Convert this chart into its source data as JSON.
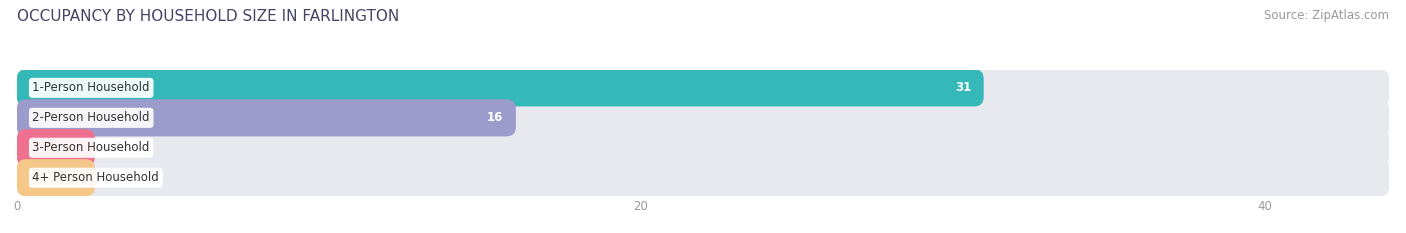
{
  "title": "OCCUPANCY BY HOUSEHOLD SIZE IN FARLINGTON",
  "source": "Source: ZipAtlas.com",
  "categories": [
    "1-Person Household",
    "2-Person Household",
    "3-Person Household",
    "4+ Person Household"
  ],
  "values": [
    31,
    16,
    0,
    0
  ],
  "bar_colors": [
    "#35b8b8",
    "#9b9bcc",
    "#f07090",
    "#f5c88a"
  ],
  "background_color": "#ffffff",
  "bar_bg_color": "#e8e8ef",
  "xlim": [
    0,
    44
  ],
  "xticks": [
    0,
    20,
    40
  ],
  "title_fontsize": 11,
  "source_fontsize": 8.5,
  "bar_label_fontsize": 8.5,
  "category_fontsize": 8.5,
  "bar_height": 0.62,
  "zero_bar_width": 2.5
}
